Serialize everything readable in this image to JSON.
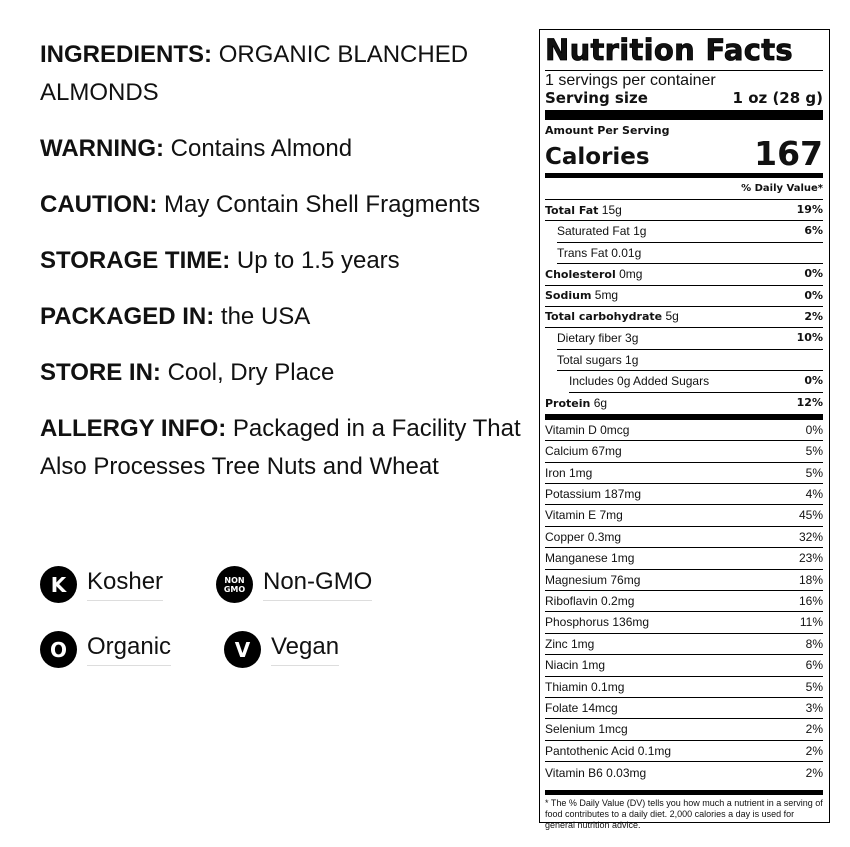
{
  "info": [
    {
      "label": "INGREDIENTS:",
      "value": "ORGANIC BLANCHED ALMONDS"
    },
    {
      "label": "WARNING:",
      "value": "Contains Almond"
    },
    {
      "label": "CAUTION:",
      "value": "May Contain Shell Fragments"
    },
    {
      "label": "STORAGE TIME:",
      "value": "Up to 1.5 years"
    },
    {
      "label": "PACKAGED IN:",
      "value": "the USA"
    },
    {
      "label": "STORE IN:",
      "value": "Cool, Dry Place"
    },
    {
      "label": "ALLERGY INFO:",
      "value": "Packaged in a Facility That Also Processes Tree Nuts and Wheat"
    }
  ],
  "badges": [
    {
      "icon": "kosher-icon",
      "glyph": "K",
      "label": "Kosher"
    },
    {
      "icon": "non-gmo-icon",
      "glyph": "NON GMO",
      "label": "Non-GMO"
    },
    {
      "icon": "organic-icon",
      "glyph": "O",
      "label": "Organic"
    },
    {
      "icon": "vegan-icon",
      "glyph": "V",
      "label": "Vegan"
    }
  ],
  "nutrition": {
    "title": "Nutrition Facts",
    "servings": "1 servings per container",
    "serving_size_label": "Serving size",
    "serving_size": "1 oz (28 g)",
    "amount_per_serving": "Amount Per Serving",
    "calories_label": "Calories",
    "calories": "167",
    "dv_header": "% Daily Value*",
    "rows": [
      {
        "name": "Total Fat",
        "amount": "15g",
        "dv": "19%"
      },
      {
        "name": "Saturated Fat",
        "amount": "1g",
        "dv": "6%"
      },
      {
        "name": "Trans Fat",
        "amount": "0.01g",
        "dv": ""
      },
      {
        "name": "Cholesterol",
        "amount": "0mg",
        "dv": "0%"
      },
      {
        "name": "Sodium",
        "amount": "5mg",
        "dv": "0%"
      },
      {
        "name": "Total carbohydrate",
        "amount": "5g",
        "dv": "2%"
      },
      {
        "name": "Dietary fiber",
        "amount": "3g",
        "dv": "10%"
      },
      {
        "name": "Total sugars",
        "amount": "1g",
        "dv": ""
      },
      {
        "name": "Includes 0g Added Sugars",
        "amount": "",
        "dv": "0%"
      },
      {
        "name": "Protein",
        "amount": "6g",
        "dv": "12%"
      }
    ],
    "vitamins": [
      {
        "name": "Vitamin D 0mcg",
        "dv": "0%"
      },
      {
        "name": "Calcium 67mg",
        "dv": "5%"
      },
      {
        "name": "Iron 1mg",
        "dv": "5%"
      },
      {
        "name": "Potassium 187mg",
        "dv": "4%"
      },
      {
        "name": "Vitamin E 7mg",
        "dv": "45%"
      },
      {
        "name": "Copper 0.3mg",
        "dv": "32%"
      },
      {
        "name": "Manganese 1mg",
        "dv": "23%"
      },
      {
        "name": "Magnesium 76mg",
        "dv": "18%"
      },
      {
        "name": "Riboflavin 0.2mg",
        "dv": "16%"
      },
      {
        "name": "Phosphorus 136mg",
        "dv": "11%"
      },
      {
        "name": "Zinc 1mg",
        "dv": "8%"
      },
      {
        "name": "Niacin 1mg",
        "dv": "6%"
      },
      {
        "name": "Thiamin 0.1mg",
        "dv": "5%"
      },
      {
        "name": "Folate 14mcg",
        "dv": "3%"
      },
      {
        "name": "Selenium 1mcg",
        "dv": "2%"
      },
      {
        "name": "Pantothenic Acid 0.1mg",
        "dv": "2%"
      },
      {
        "name": "Vitamin B6 0.03mg",
        "dv": "2%"
      }
    ],
    "footnote": "* The % Daily Value (DV) tells you how much a nutrient in a serving of food contributes to a daily diet. 2,000 calories a day is used for general nutrition advice."
  }
}
